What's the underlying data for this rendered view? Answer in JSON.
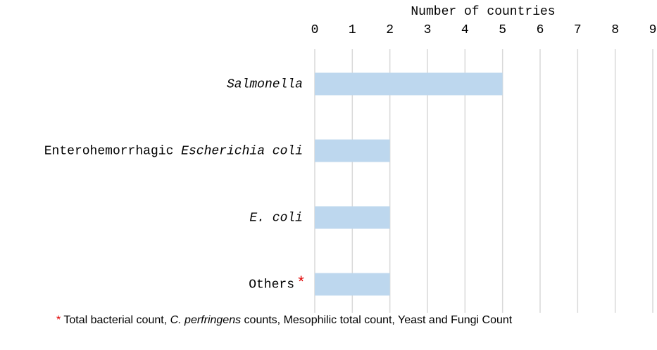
{
  "chart_data": {
    "type": "barh",
    "x_label": "Number of countries",
    "categories": [
      "Salmonella",
      "Enterohemorrhagic Escherichia coli",
      "E. coli",
      "Others"
    ],
    "values": [
      5,
      2,
      2,
      2
    ],
    "color": "#bdd7ee",
    "xlim": [
      0,
      9
    ],
    "xticks": [
      0,
      1,
      2,
      3,
      4,
      5,
      6,
      7,
      8,
      9
    ],
    "grid": true,
    "italic_terms": [
      "Salmonella",
      "Escherichia coli",
      "E. coli",
      "C. perfringens"
    ],
    "footnote_marker": "*",
    "footnote": "Total bacterial count, C. perfringens counts, Mesophilic total count, Yeast and Fungi Count"
  }
}
